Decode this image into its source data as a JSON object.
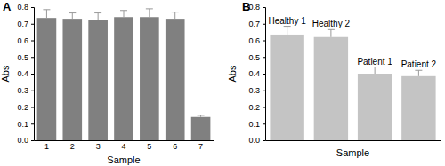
{
  "chart_data": [
    {
      "type": "bar",
      "title": "A",
      "x_label": "Sample",
      "y_label": "Abs",
      "categories": [
        "1",
        "2",
        "3",
        "4",
        "5",
        "6",
        "7"
      ],
      "values": [
        0.735,
        0.73,
        0.725,
        0.74,
        0.74,
        0.73,
        0.14
      ],
      "errors": [
        0.05,
        0.035,
        0.04,
        0.04,
        0.05,
        0.04,
        0.01
      ],
      "color": "#808080",
      "ylim": [
        0,
        0.8
      ],
      "yticks": [
        {
          "value": 0,
          "label": "0.0"
        },
        {
          "value": 0.1,
          "label": "0.1"
        },
        {
          "value": 0.2,
          "label": "0.2"
        },
        {
          "value": 0.3,
          "label": "0.3"
        },
        {
          "value": 0.4,
          "label": "0.4"
        },
        {
          "value": 0.5,
          "label": "0.5"
        },
        {
          "value": 0.6,
          "label": "0.6"
        },
        {
          "value": 0.7,
          "label": "0.7"
        },
        {
          "value": 0.8,
          "label": "0.8"
        }
      ]
    },
    {
      "type": "bar",
      "title": "B",
      "x_label": "Sample",
      "y_label": "Abs",
      "categories": [
        "Healthy 1",
        "Healthy 2",
        "Patient 1",
        "Patient 2"
      ],
      "values": [
        0.635,
        0.62,
        0.4,
        0.385
      ],
      "errors": [
        0.05,
        0.045,
        0.04,
        0.035
      ],
      "color": "#c4c4c4",
      "ylim": [
        0,
        0.8
      ],
      "yticks": [
        {
          "value": 0,
          "label": "0.0"
        },
        {
          "value": 0.1,
          "label": "0.1"
        },
        {
          "value": 0.2,
          "label": "0.2"
        },
        {
          "value": 0.3,
          "label": "0.3"
        },
        {
          "value": 0.4,
          "label": "0.4"
        },
        {
          "value": 0.5,
          "label": "0.5"
        },
        {
          "value": 0.6,
          "label": "0.6"
        },
        {
          "value": 0.7,
          "label": "0.7"
        },
        {
          "value": 0.8,
          "label": "0.8"
        }
      ],
      "tick_labels": "y"
    }
  ]
}
